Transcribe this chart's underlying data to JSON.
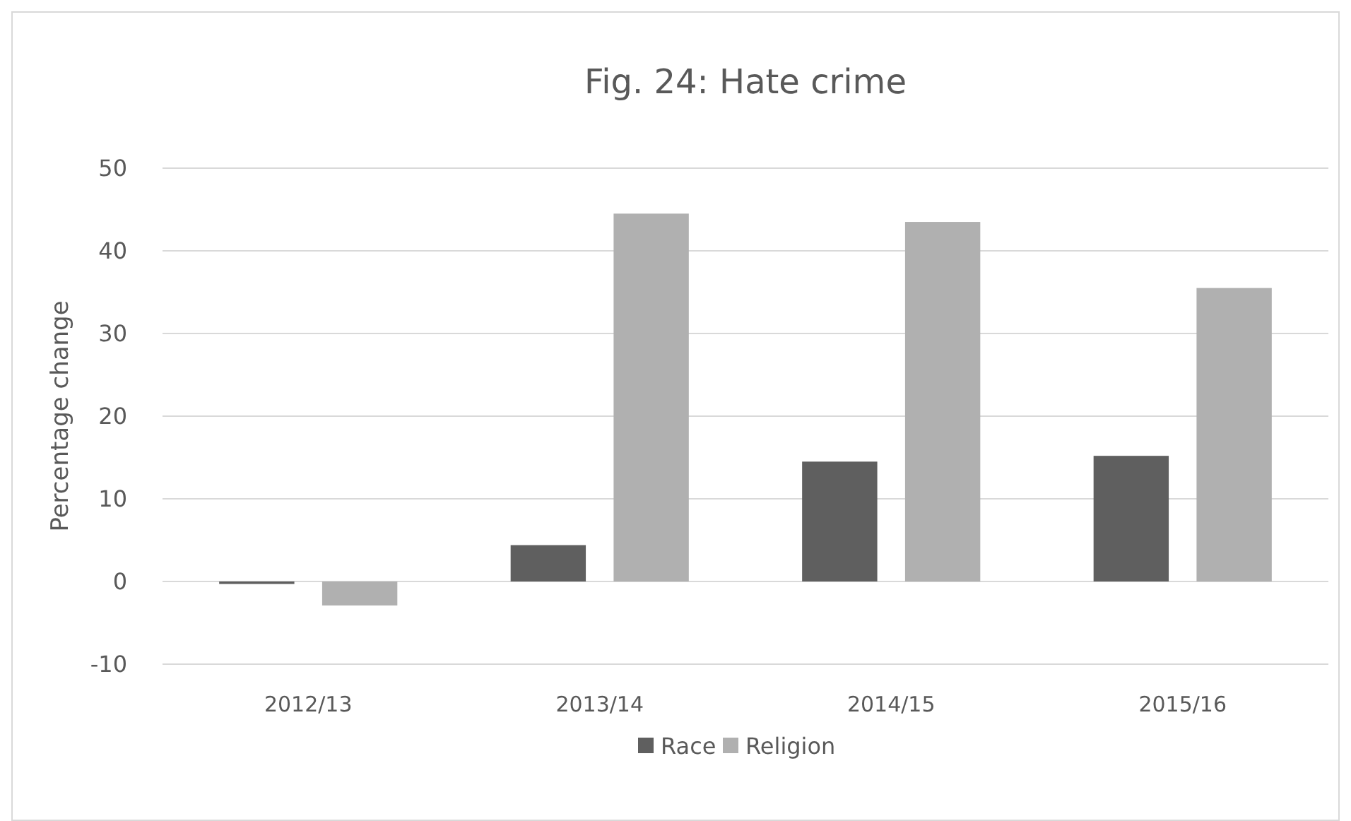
{
  "chart_data": {
    "type": "bar",
    "title": "Fig. 24: Hate crime",
    "ylabel": "Percentage change",
    "categories": [
      "2012/13",
      "2013/14",
      "2014/15",
      "2015/16"
    ],
    "series": [
      {
        "name": "Race",
        "color": "#5f5f5f",
        "values": [
          -0.3,
          4.4,
          14.5,
          15.2
        ]
      },
      {
        "name": "Religion",
        "color": "#b0b0b0",
        "values": [
          -2.9,
          44.5,
          43.5,
          35.5
        ]
      }
    ],
    "ylim": [
      -10,
      50
    ],
    "yticks": [
      -10,
      0,
      10,
      20,
      30,
      40,
      50
    ],
    "grid": "y",
    "legend": "bottom"
  }
}
